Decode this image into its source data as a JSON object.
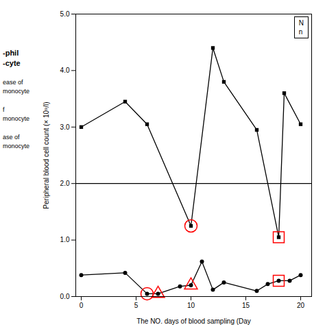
{
  "chart_data": {
    "type": "line",
    "xlabel": "The NO. days of blood sampling (Day",
    "ylabel": "Peripheral blood cell count (× 10⁹/l)",
    "xlim": [
      -0.5,
      21
    ],
    "xticks": [
      0,
      5,
      10,
      15,
      20
    ],
    "ylim": [
      0,
      5
    ],
    "yticks": [
      0,
      1,
      2,
      3,
      4,
      5
    ],
    "series": [
      {
        "x": [
          0,
          4,
          6,
          10,
          12,
          13,
          16,
          18,
          18.5,
          20
        ],
        "values": [
          3.0,
          3.45,
          3.05,
          1.25,
          4.4,
          3.8,
          2.95,
          1.05,
          3.6,
          3.05
        ],
        "color": "#000000",
        "marker": "square"
      },
      {
        "x": [
          0,
          4,
          6,
          7,
          9,
          10,
          11,
          12,
          13,
          16,
          17,
          18,
          19,
          20
        ],
        "values": [
          0.38,
          0.42,
          0.05,
          0.05,
          0.18,
          0.2,
          0.62,
          0.12,
          0.25,
          0.1,
          0.22,
          0.28,
          0.28,
          0.38
        ],
        "color": "#000000",
        "marker": "circle"
      }
    ],
    "reference_lines": [
      {
        "y": 2.0,
        "color": "#000000"
      }
    ],
    "highlights": [
      {
        "marker": "circle",
        "color": "#ff0000",
        "points": [
          [
            6,
            0.05
          ],
          [
            10,
            1.25
          ]
        ]
      },
      {
        "marker": "triangle",
        "color": "#ff0000",
        "points": [
          [
            7,
            0.05
          ],
          [
            10,
            0.2
          ]
        ]
      },
      {
        "marker": "square",
        "color": "#ff0000",
        "points": [
          [
            18,
            1.05
          ],
          [
            18,
            0.28
          ]
        ]
      }
    ],
    "box_annotations": [
      "N",
      "n"
    ],
    "annotations": [
      "-phil",
      "-cyte",
      "ease of",
      "monocyte",
      "f",
      "monocyte",
      "ase of",
      "monocyte"
    ],
    "background": "#ffffff"
  }
}
